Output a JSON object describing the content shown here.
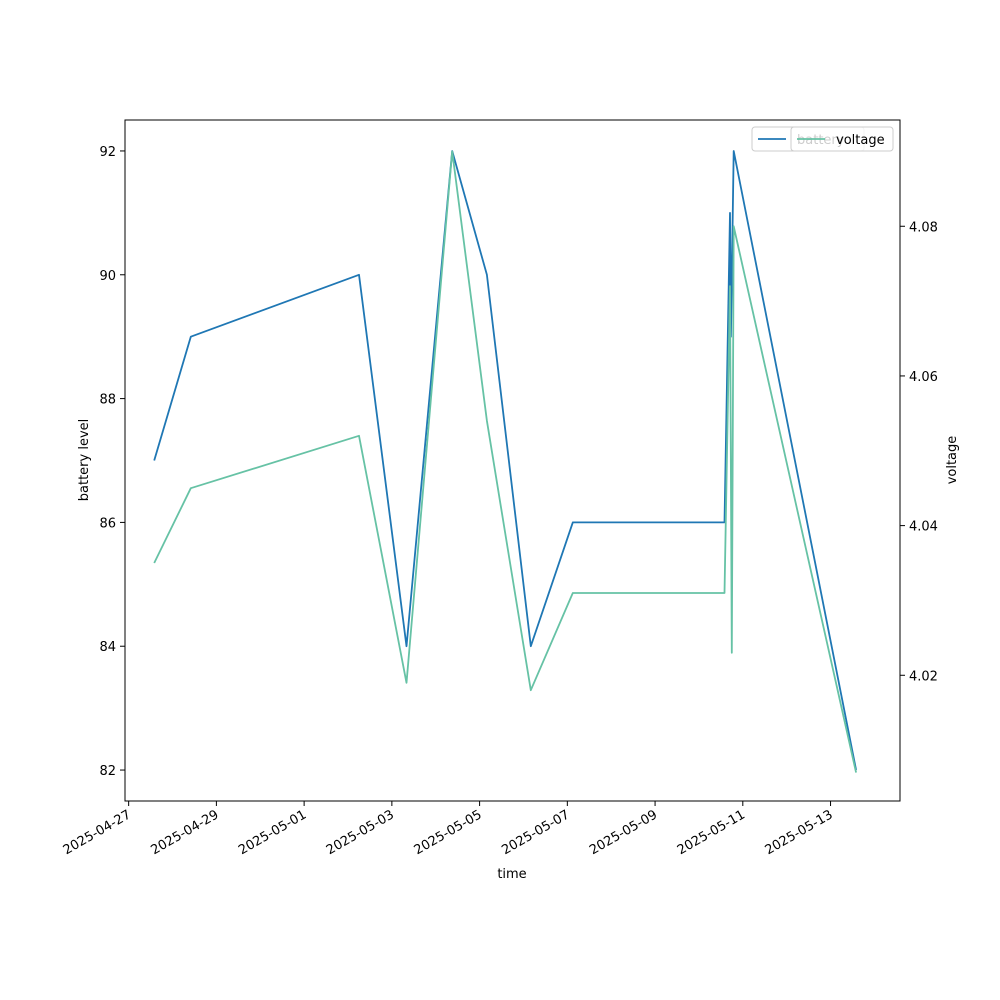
{
  "chart_data": {
    "type": "line",
    "xlabel": "time",
    "ylabel_left": "battery level",
    "ylabel_right": "voltage",
    "x_tick_labels": [
      "2025-04-27",
      "2025-04-29",
      "2025-05-01",
      "2025-05-03",
      "2025-05-05",
      "2025-05-07",
      "2025-05-09",
      "2025-05-11",
      "2025-05-13"
    ],
    "y_left_ticks": [
      "82",
      "84",
      "86",
      "88",
      "90",
      "92"
    ],
    "y_right_ticks": [
      "4.02",
      "4.04",
      "4.06",
      "4.08"
    ],
    "xlim": [
      "2025-04-26 22:00",
      "2025-05-14 14:00"
    ],
    "ylim_left": [
      81.5,
      92.5
    ],
    "ylim_right": [
      4.0032,
      4.0942
    ],
    "legend_position": "top-right",
    "colors": {
      "battery": "#1f77b4",
      "voltage": "#66c2a5"
    },
    "series": [
      {
        "name": "battery",
        "axis": "left",
        "points": [
          [
            "2025-04-27 14:00",
            87
          ],
          [
            "2025-04-28 10:00",
            89
          ],
          [
            "2025-05-02 06:00",
            90
          ],
          [
            "2025-05-03 08:00",
            84
          ],
          [
            "2025-05-04 09:00",
            92
          ],
          [
            "2025-05-05 04:00",
            90
          ],
          [
            "2025-05-06 04:00",
            84
          ],
          [
            "2025-05-07 03:00",
            86
          ],
          [
            "2025-05-10 14:00",
            86
          ],
          [
            "2025-05-10 17:00",
            91
          ],
          [
            "2025-05-10 17:30",
            89
          ],
          [
            "2025-05-10 19:00",
            92
          ],
          [
            "2025-05-13 14:00",
            82
          ]
        ]
      },
      {
        "name": "voltage",
        "axis": "right",
        "points": [
          [
            "2025-04-27 14:00",
            4.035
          ],
          [
            "2025-04-28 10:00",
            4.045
          ],
          [
            "2025-05-02 06:00",
            4.052
          ],
          [
            "2025-05-03 08:00",
            4.019
          ],
          [
            "2025-05-04 09:00",
            4.09
          ],
          [
            "2025-05-05 04:00",
            4.054
          ],
          [
            "2025-05-06 04:00",
            4.018
          ],
          [
            "2025-05-07 03:00",
            4.031
          ],
          [
            "2025-05-10 14:00",
            4.031
          ],
          [
            "2025-05-10 17:00",
            4.072
          ],
          [
            "2025-05-10 18:00",
            4.023
          ],
          [
            "2025-05-10 19:00",
            4.08
          ],
          [
            "2025-05-13 14:00",
            4.007
          ]
        ]
      }
    ],
    "legends": [
      {
        "label": "battery",
        "series": "battery"
      },
      {
        "label": "voltage",
        "series": "voltage"
      }
    ]
  }
}
